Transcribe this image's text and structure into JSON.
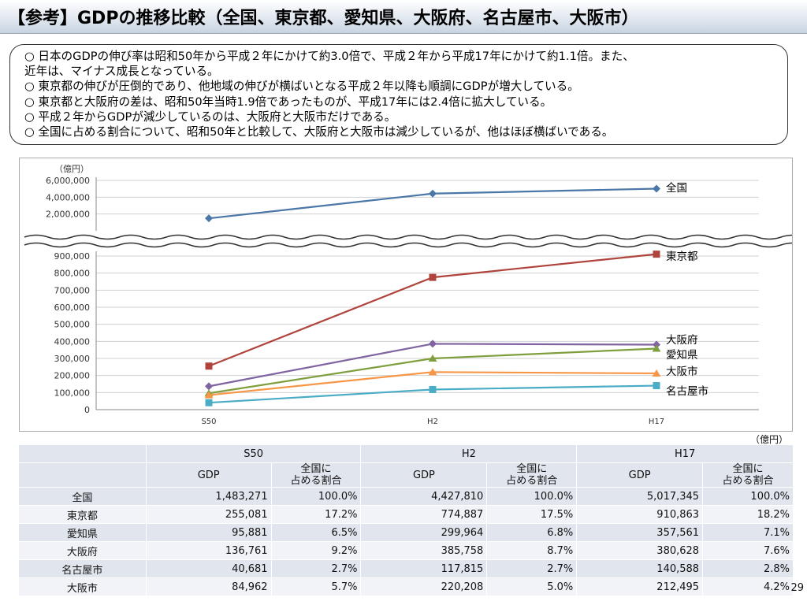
{
  "title": "【参考】GDPの推移比較（全国、東京都、愛知県、大阪府、名古屋市、大阪市）",
  "notes": [
    "○ 日本のGDPの伸び率は昭和50年から平成２年にかけて約3.0倍で、平成２年から平成17年にかけて約1.1倍。また、",
    "近年は、マイナス成長となっている。",
    "○ 東京都の伸びが圧倒的であり、他地域の伸びが横ばいとなる平成２年以降も順調にGDPが増大している。",
    "○ 東京都と大阪府の差は、昭和50年当時1.9倍であったものが、平成17年には2.4倍に拡大している。",
    "○ 平成２年からGDPが減少しているのは、大阪府と大阪市だけである。",
    "○ 全国に占める割合について、昭和50年と比較して、大阪府と大阪市は減少しているが、他はほぼ横ばいである。"
  ],
  "chart_data": {
    "type": "line",
    "unit_label": "（億円）",
    "categories": [
      "S50",
      "H2",
      "H17"
    ],
    "upper_axis": {
      "ticks": [
        "6,000,000",
        "4,000,000",
        "2,000,000"
      ],
      "values": [
        6000000,
        4000000,
        2000000
      ],
      "ylim": [
        0,
        6000000
      ]
    },
    "lower_axis": {
      "ticks": [
        "900,000",
        "800,000",
        "700,000",
        "600,000",
        "500,000",
        "400,000",
        "300,000",
        "200,000",
        "100,000",
        "0"
      ],
      "values": [
        900000,
        800000,
        700000,
        600000,
        500000,
        400000,
        300000,
        200000,
        100000,
        0
      ],
      "ylim": [
        0,
        900000
      ]
    },
    "grid": true,
    "series": [
      {
        "name": "全国",
        "values": [
          1483271,
          4427810,
          5017345
        ],
        "color": "#4a76a8",
        "marker": "diamond",
        "panel": "upper"
      },
      {
        "name": "東京都",
        "values": [
          255081,
          774887,
          910863
        ],
        "color": "#b0443d",
        "marker": "square",
        "panel": "lower"
      },
      {
        "name": "大阪府",
        "values": [
          136761,
          385758,
          380628
        ],
        "color": "#8064a2",
        "marker": "diamond",
        "panel": "lower"
      },
      {
        "name": "愛知県",
        "values": [
          95881,
          299964,
          357561
        ],
        "color": "#7f9f3f",
        "marker": "triangle",
        "panel": "lower"
      },
      {
        "name": "大阪市",
        "values": [
          84962,
          220208,
          212495
        ],
        "color": "#f79646",
        "marker": "triangle",
        "panel": "lower"
      },
      {
        "name": "名古屋市",
        "values": [
          40681,
          117815,
          140588
        ],
        "color": "#4bacc6",
        "marker": "square",
        "panel": "lower"
      }
    ]
  },
  "table": {
    "unit": "（億円）",
    "years": [
      "S50",
      "H2",
      "H17"
    ],
    "col_gdp": "GDP",
    "col_share_line1": "全国に",
    "col_share_line2": "占める割合",
    "rows": [
      {
        "name": "全国",
        "values": [
          "1,483,271",
          "100.0%",
          "4,427,810",
          "100.0%",
          "5,017,345",
          "100.0%"
        ]
      },
      {
        "name": "東京都",
        "values": [
          "255,081",
          "17.2%",
          "774,887",
          "17.5%",
          "910,863",
          "18.2%"
        ]
      },
      {
        "name": "愛知県",
        "values": [
          "95,881",
          "6.5%",
          "299,964",
          "6.8%",
          "357,561",
          "7.1%"
        ]
      },
      {
        "name": "大阪府",
        "values": [
          "136,761",
          "9.2%",
          "385,758",
          "8.7%",
          "380,628",
          "7.6%"
        ]
      },
      {
        "name": "名古屋市",
        "values": [
          "40,681",
          "2.7%",
          "117,815",
          "2.7%",
          "140,588",
          "2.8%"
        ]
      },
      {
        "name": "大阪市",
        "values": [
          "84,962",
          "5.7%",
          "220,208",
          "5.0%",
          "212,495",
          "4.2%"
        ]
      }
    ]
  },
  "page_number": "29"
}
